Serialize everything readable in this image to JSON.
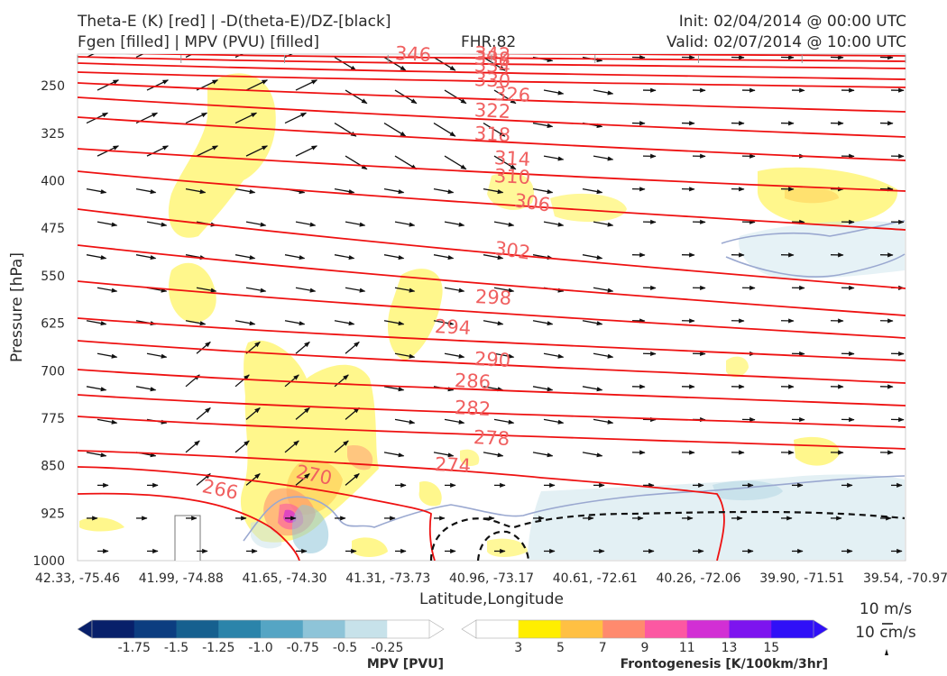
{
  "header": {
    "line1_left": "Theta-E (K) [red] | -D(theta-E)/DZ-[black]",
    "line2_left": "Fgen [filled] | MPV (PVU) [filled]",
    "fhr": "FHR:82",
    "init": "Init: 02/04/2014 @ 00:00 UTC",
    "valid": "Valid: 02/07/2014 @ 10:00 UTC"
  },
  "chart_data": {
    "type": "cross-section",
    "ylabel": "Pressure [hPa]",
    "xlabel": "Latitude,Longitude",
    "y_ticks": [
      250,
      325,
      400,
      475,
      550,
      625,
      700,
      775,
      850,
      925,
      1000
    ],
    "ylim": [
      1000,
      200
    ],
    "x_ticks": [
      "42.33, -75.46",
      "41.99, -74.88",
      "41.65, -74.30",
      "41.31, -73.73",
      "40.96, -73.17",
      "40.61, -72.61",
      "40.26, -72.06",
      "39.90, -71.51",
      "39.54, -70.97"
    ],
    "theta_e_color": "#ee1111",
    "theta_e_levels": [
      266,
      270,
      274,
      278,
      282,
      286,
      290,
      294,
      298,
      302,
      306,
      310,
      314,
      318,
      322,
      326,
      330,
      334,
      338,
      342,
      346
    ],
    "theta_e_labels": [
      266,
      270,
      274,
      278,
      282,
      286,
      290,
      294,
      298,
      302,
      306,
      310,
      314,
      318,
      322,
      326,
      330,
      334,
      338,
      342,
      346
    ],
    "mpv_colorbar": {
      "title": "MPV [PVU]",
      "ticks": [
        "-1.75",
        "-1.5",
        "-1.25",
        "-1.0",
        "-0.75",
        "-0.5",
        "-0.25"
      ],
      "colors": [
        "#08206a",
        "#0c3d80",
        "#16608f",
        "#2b84aa",
        "#55a5c4",
        "#8ec4d8",
        "#c7e2ea",
        "#ffffff"
      ]
    },
    "fgen_colorbar": {
      "title": "Frontogenesis [K/100km/3hr]",
      "ticks": [
        "3",
        "5",
        "7",
        "9",
        "11",
        "13",
        "15"
      ],
      "colors": [
        "#ffffff",
        "#ffee00",
        "#ffc043",
        "#ff8a6e",
        "#fc58a2",
        "#d22fd4",
        "#7d14ef",
        "#3010f7"
      ]
    },
    "quiver_keys": [
      "10 m/s",
      "10 cm/s"
    ]
  }
}
